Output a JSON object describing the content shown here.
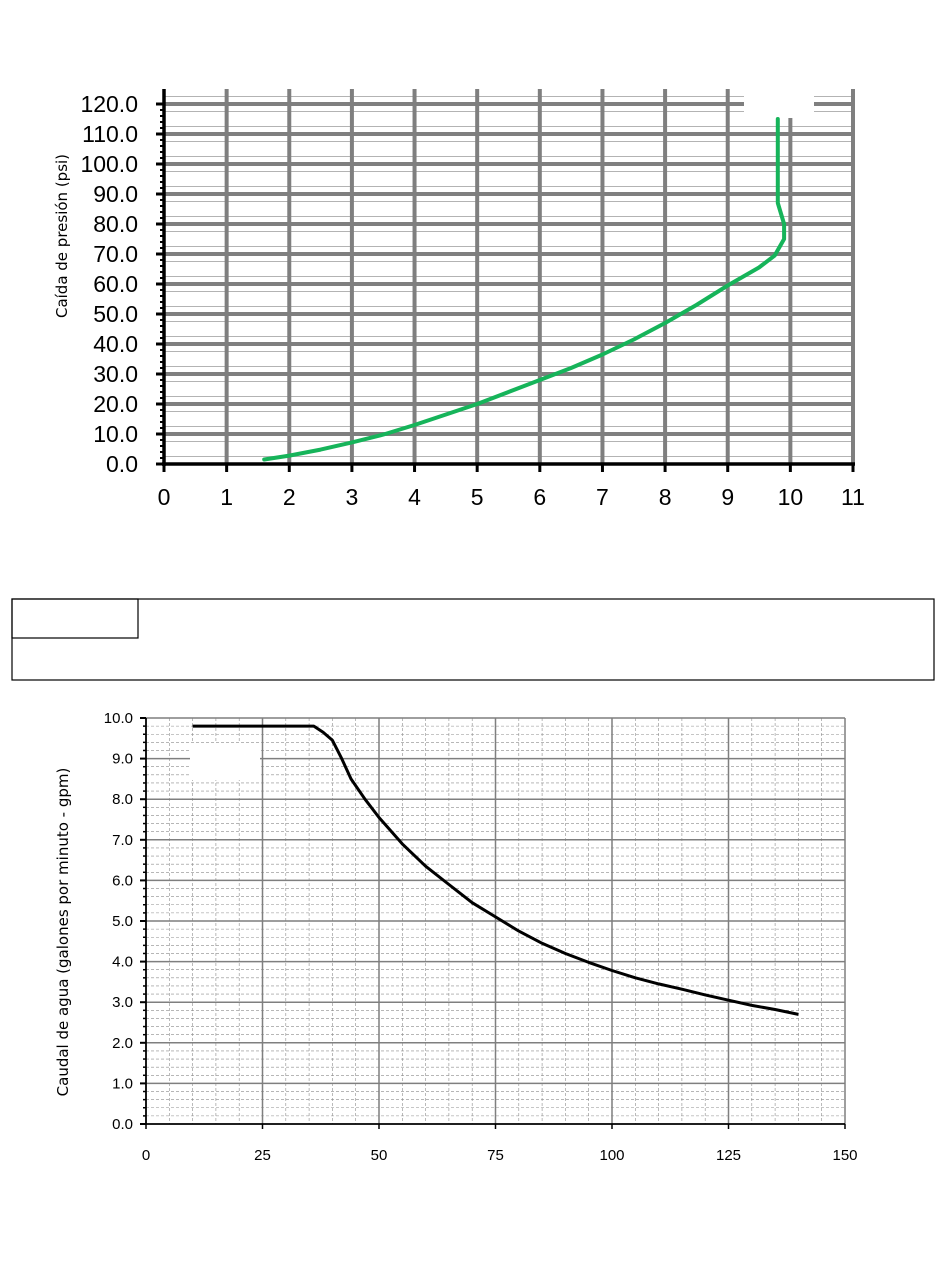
{
  "chart_data": [
    {
      "type": "line",
      "title": "",
      "xlabel": "",
      "ylabel": "Caída de presión (psi)",
      "xlim": [
        0,
        11
      ],
      "ylim": [
        0,
        120
      ],
      "x_ticks": [
        "0",
        "1",
        "2",
        "3",
        "4",
        "5",
        "6",
        "7",
        "8",
        "9",
        "10",
        "11"
      ],
      "y_ticks": [
        "0.0",
        "10.0",
        "20.0",
        "30.0",
        "40.0",
        "50.0",
        "60.0",
        "70.0",
        "80.0",
        "90.0",
        "100.0",
        "110.0",
        "120.0"
      ],
      "grid": true,
      "line_color": "#16b45a",
      "series": [
        {
          "x": [
            1.6,
            2.0,
            2.5,
            3.0,
            3.5,
            4.0,
            4.5,
            5.0,
            5.5,
            6.0,
            6.5,
            7.0,
            7.5,
            8.0,
            8.5,
            9.0,
            9.5,
            9.75,
            9.9,
            9.9,
            9.8,
            9.8,
            9.8
          ],
          "y": [
            1.5,
            2.8,
            4.8,
            7.2,
            9.8,
            13.0,
            16.5,
            20.0,
            24.0,
            28.0,
            32.0,
            36.5,
            41.5,
            47.0,
            53.0,
            59.5,
            65.5,
            69.5,
            75.0,
            80.0,
            87.0,
            100.0,
            115.0
          ]
        }
      ]
    },
    {
      "type": "line",
      "title": "",
      "xlabel": "",
      "ylabel": "Caudal de agua (galones por minuto - gpm)",
      "xlim": [
        0,
        150
      ],
      "ylim": [
        0,
        10
      ],
      "x_ticks": [
        "0",
        "25",
        "50",
        "75",
        "100",
        "125",
        "150"
      ],
      "y_ticks": [
        "0.0",
        "1.0",
        "2.0",
        "3.0",
        "4.0",
        "5.0",
        "6.0",
        "7.0",
        "8.0",
        "9.0",
        "10.0"
      ],
      "grid": true,
      "line_color": "#000000",
      "series": [
        {
          "x": [
            10,
            20,
            30,
            36,
            38,
            40,
            42,
            44,
            47,
            50,
            55,
            60,
            65,
            70,
            75,
            80,
            85,
            90,
            95,
            100,
            105,
            110,
            115,
            120,
            125,
            130,
            135,
            140
          ],
          "y": [
            9.8,
            9.8,
            9.8,
            9.8,
            9.65,
            9.45,
            9.0,
            8.5,
            8.0,
            7.55,
            6.9,
            6.35,
            5.9,
            5.45,
            5.1,
            4.75,
            4.45,
            4.2,
            3.98,
            3.78,
            3.6,
            3.45,
            3.32,
            3.18,
            3.05,
            2.92,
            2.82,
            2.7
          ]
        }
      ]
    }
  ]
}
